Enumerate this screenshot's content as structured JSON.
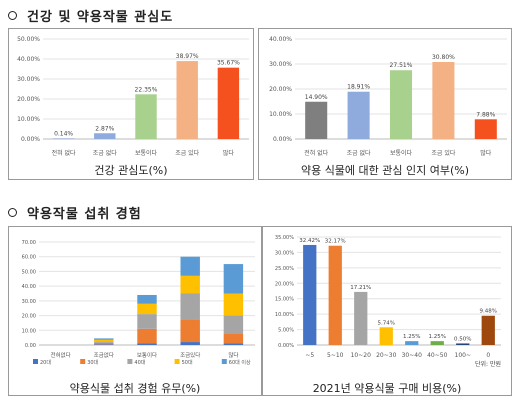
{
  "sections": {
    "interest_title": "건강 및 약용작물 관심도",
    "intake_title": "약용작물 섭취 경험"
  },
  "captions": {
    "health_interest": "건강 관심도(%)",
    "food_awareness": "약용 식물에 대한 관심 인지 여부(%)",
    "intake_experience": "약용식물 섭취 경험 유무(%)",
    "purchase_cost": "2021년 약용식물 구매 비용(%)"
  },
  "chart_data": [
    {
      "id": "health_interest",
      "type": "bar",
      "categories": [
        "전혀 없다",
        "조금 없다",
        "보통이다",
        "조금 있다",
        "많다"
      ],
      "values": [
        0.14,
        2.87,
        22.35,
        38.97,
        35.67
      ],
      "data_labels": [
        "0.14%",
        "2.87%",
        "22.35%",
        "38.97%",
        "35.67%"
      ],
      "colors": [
        "#4472c4",
        "#8faadc",
        "#a9d18e",
        "#f4b183",
        "#f4511e"
      ],
      "ylim": [
        0,
        50
      ],
      "ytick_labels": [
        "0.00%",
        "10.00%",
        "20.00%",
        "30.00%",
        "40.00%",
        "50.00%"
      ],
      "grid": true
    },
    {
      "id": "food_awareness",
      "type": "bar",
      "categories": [
        "전혀 없다",
        "조금 없다",
        "보통이다",
        "조금 있다",
        "많다"
      ],
      "values": [
        14.9,
        18.91,
        27.51,
        30.8,
        7.88
      ],
      "data_labels": [
        "14.90%",
        "18.91%",
        "27.51%",
        "30.80%",
        "7.88%"
      ],
      "colors": [
        "#7f7f7f",
        "#8faadc",
        "#a9d18e",
        "#f4b183",
        "#f4511e"
      ],
      "ylim": [
        0,
        40
      ],
      "ytick_labels": [
        "0.00%",
        "10.00%",
        "20.00%",
        "30.00%",
        "40.00%"
      ],
      "grid": true
    },
    {
      "id": "intake_experience",
      "type": "bar",
      "stacked": true,
      "categories": [
        "전혀없다",
        "조금없다",
        "보통이다",
        "조금있다",
        "많다"
      ],
      "series": [
        {
          "name": "20대",
          "color": "#4472c4",
          "values": [
            0,
            0.5,
            1,
            2,
            1
          ]
        },
        {
          "name": "30대",
          "color": "#ed7d31",
          "values": [
            0,
            1,
            10,
            15,
            7
          ]
        },
        {
          "name": "40대",
          "color": "#a5a5a5",
          "values": [
            0,
            1,
            10,
            18,
            12
          ]
        },
        {
          "name": "50대",
          "color": "#ffc000",
          "values": [
            0,
            1,
            7,
            12,
            15
          ]
        },
        {
          "name": "60대 이상",
          "color": "#5b9bd5",
          "values": [
            0,
            1,
            6,
            13,
            20
          ]
        }
      ],
      "ylim": [
        0,
        70
      ],
      "ytick_labels": [
        "0.00",
        "10.00",
        "20.00",
        "30.00",
        "40.00",
        "50.00",
        "60.00",
        "70.00"
      ],
      "grid": true,
      "legend": "bottom"
    },
    {
      "id": "purchase_cost",
      "type": "bar",
      "categories": [
        "~5",
        "5~10",
        "10~20",
        "20~30",
        "30~40",
        "40~50",
        "100~",
        "0"
      ],
      "values": [
        32.42,
        32.17,
        17.21,
        5.74,
        1.25,
        1.25,
        0.5,
        9.48
      ],
      "data_labels": [
        "32.42%",
        "32.17%",
        "17.21%",
        "5.74%",
        "1.25%",
        "1.25%",
        "0.50%",
        "9.48%"
      ],
      "colors": [
        "#4472c4",
        "#ed7d31",
        "#a5a5a5",
        "#ffc000",
        "#5b9bd5",
        "#70ad47",
        "#264478",
        "#9e480e"
      ],
      "ylim": [
        0,
        35
      ],
      "ytick_labels": [
        "0.00%",
        "5.00%",
        "10.00%",
        "15.00%",
        "20.00%",
        "25.00%",
        "30.00%",
        "35.00%"
      ],
      "unit_note": "단위: 만원",
      "grid": true
    }
  ]
}
